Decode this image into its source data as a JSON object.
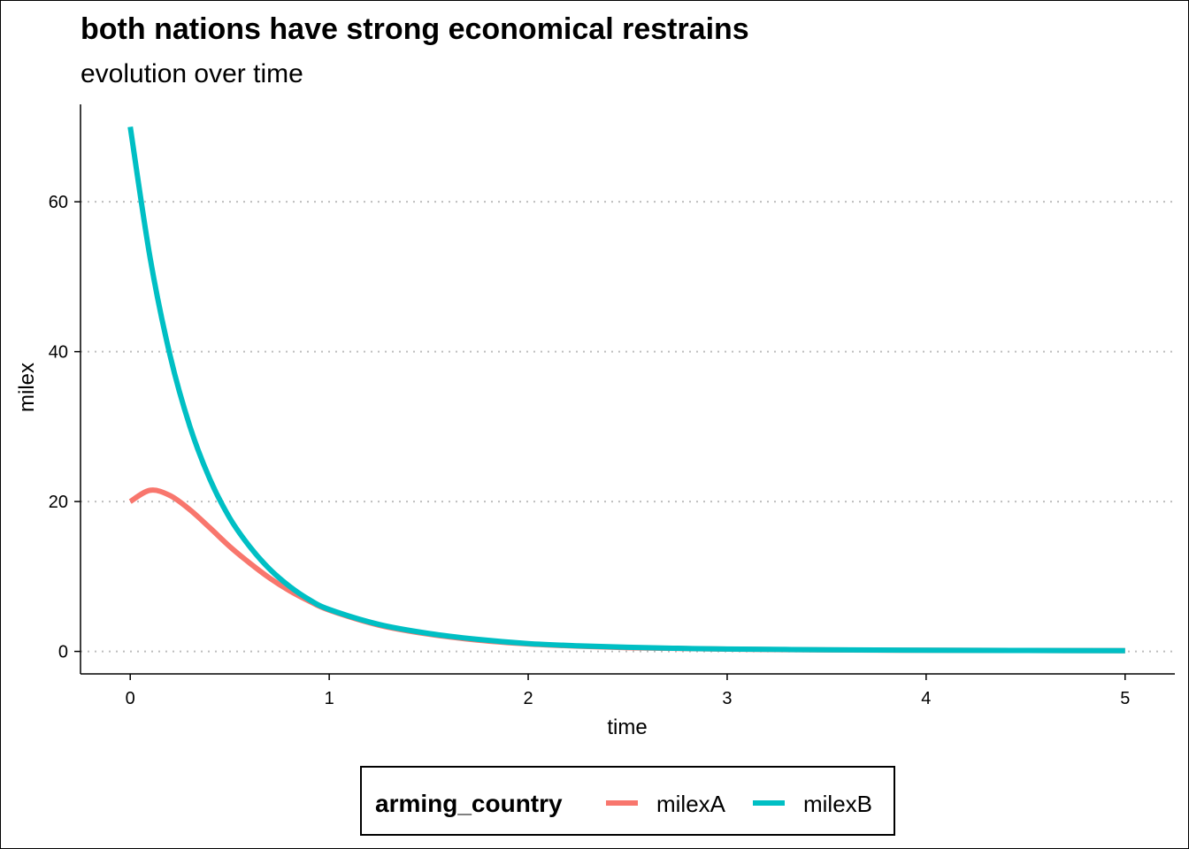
{
  "chart_data": {
    "type": "line",
    "title": "both nations have strong economical restrains",
    "subtitle": "evolution over time",
    "xlabel": "time",
    "ylabel": "milex",
    "xlim": [
      -0.25,
      5.25
    ],
    "ylim": [
      -3,
      73
    ],
    "x_ticks": [
      0,
      1,
      2,
      3,
      4,
      5
    ],
    "y_ticks": [
      0,
      20,
      40,
      60
    ],
    "grid": "horizontal-dotted",
    "legend": {
      "title": "arming_country",
      "position": "bottom"
    },
    "x": [
      0,
      0.1,
      0.2,
      0.3,
      0.4,
      0.5,
      0.6,
      0.7,
      0.8,
      0.9,
      1.0,
      1.25,
      1.5,
      1.75,
      2.0,
      2.25,
      2.5,
      2.75,
      3.0,
      3.5,
      4.0,
      4.5,
      5.0
    ],
    "series": [
      {
        "name": "milexA",
        "color": "#F8766D",
        "values": [
          20.0,
          21.5,
          20.8,
          18.9,
          16.5,
          14.0,
          11.8,
          9.8,
          8.1,
          6.7,
          5.5,
          3.5,
          2.3,
          1.5,
          1.0,
          0.7,
          0.5,
          0.4,
          0.3,
          0.2,
          0.15,
          0.12,
          0.1
        ]
      },
      {
        "name": "milexB",
        "color": "#00BFC4",
        "values": [
          70.0,
          52.5,
          39.5,
          30.0,
          23.0,
          17.8,
          14.0,
          11.0,
          8.7,
          6.9,
          5.6,
          3.6,
          2.4,
          1.6,
          1.05,
          0.75,
          0.55,
          0.42,
          0.32,
          0.22,
          0.16,
          0.12,
          0.1
        ]
      }
    ]
  }
}
